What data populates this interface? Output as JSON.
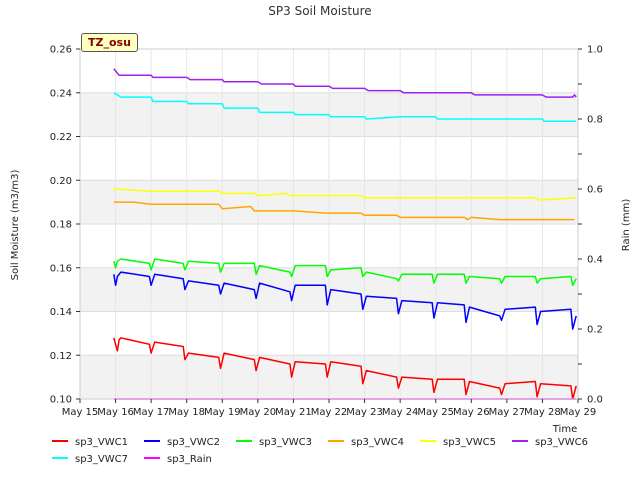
{
  "chart_data": {
    "type": "line",
    "title": "SP3 Soil Moisture",
    "xlabel": "Time",
    "ylabel": "Soil Moisture (m3/m3)",
    "y2label": "Rain (mm)",
    "site_label": "TZ_osu",
    "ylim": [
      0.1,
      0.26
    ],
    "y2lim": [
      0.0,
      1.0
    ],
    "yticks": [
      "0.10",
      "0.12",
      "0.14",
      "0.16",
      "0.18",
      "0.20",
      "0.22",
      "0.24",
      "0.26"
    ],
    "y2ticks": [
      "0.0",
      "0.2",
      "0.4",
      "0.6",
      "0.8",
      "1.0"
    ],
    "xlim": [
      15,
      29
    ],
    "xticks": [
      {
        "value": 15,
        "label": "May 15"
      },
      {
        "value": 16,
        "label": "May 16"
      },
      {
        "value": 17,
        "label": "May 17"
      },
      {
        "value": 18,
        "label": "May 18"
      },
      {
        "value": 19,
        "label": "May 19"
      },
      {
        "value": 20,
        "label": "May 20"
      },
      {
        "value": 21,
        "label": "May 21"
      },
      {
        "value": 22,
        "label": "May 22"
      },
      {
        "value": 23,
        "label": "May 23"
      },
      {
        "value": 24,
        "label": "May 24"
      },
      {
        "value": 25,
        "label": "May 25"
      },
      {
        "value": 26,
        "label": "May 26"
      },
      {
        "value": 27,
        "label": "May 27"
      },
      {
        "value": 28,
        "label": "May 28"
      },
      {
        "value": 29,
        "label": "May 29"
      }
    ],
    "series": [
      {
        "name": "sp3_VWC1",
        "color": "#ff0000",
        "axis": "left",
        "x": [
          15.95,
          16.05,
          16.1,
          16.15,
          16.95,
          17.0,
          17.1,
          17.9,
          17.95,
          18.05,
          18.9,
          18.95,
          19.05,
          19.9,
          19.95,
          20.05,
          20.9,
          20.95,
          21.05,
          21.9,
          21.95,
          22.05,
          22.9,
          22.95,
          23.05,
          23.9,
          23.95,
          24.05,
          24.9,
          24.95,
          25.05,
          25.8,
          25.85,
          25.95,
          26.8,
          26.85,
          26.95,
          27.8,
          27.85,
          27.95,
          28.8,
          28.85,
          28.95
        ],
        "y": [
          0.128,
          0.122,
          0.127,
          0.128,
          0.125,
          0.121,
          0.126,
          0.124,
          0.118,
          0.121,
          0.119,
          0.114,
          0.121,
          0.118,
          0.113,
          0.119,
          0.116,
          0.11,
          0.117,
          0.116,
          0.11,
          0.117,
          0.115,
          0.107,
          0.113,
          0.11,
          0.105,
          0.11,
          0.109,
          0.103,
          0.109,
          0.109,
          0.102,
          0.108,
          0.105,
          0.102,
          0.107,
          0.108,
          0.101,
          0.107,
          0.106,
          0.1,
          0.106
        ]
      },
      {
        "name": "sp3_VWC2",
        "color": "#0000ff",
        "axis": "left",
        "x": [
          15.95,
          16.0,
          16.05,
          16.15,
          16.95,
          17.0,
          17.1,
          17.9,
          17.95,
          18.05,
          18.9,
          18.95,
          19.05,
          19.9,
          19.95,
          20.05,
          20.9,
          20.95,
          21.05,
          21.9,
          21.95,
          22.05,
          22.9,
          22.95,
          23.05,
          23.9,
          23.95,
          24.05,
          24.9,
          24.95,
          25.05,
          25.8,
          25.85,
          25.95,
          26.8,
          26.85,
          26.95,
          27.8,
          27.85,
          27.95,
          28.8,
          28.85,
          28.95
        ],
        "y": [
          0.157,
          0.152,
          0.156,
          0.158,
          0.156,
          0.152,
          0.157,
          0.155,
          0.15,
          0.154,
          0.152,
          0.148,
          0.153,
          0.15,
          0.146,
          0.153,
          0.149,
          0.145,
          0.152,
          0.152,
          0.143,
          0.15,
          0.148,
          0.141,
          0.147,
          0.146,
          0.139,
          0.145,
          0.144,
          0.137,
          0.144,
          0.143,
          0.135,
          0.142,
          0.138,
          0.136,
          0.141,
          0.142,
          0.134,
          0.14,
          0.141,
          0.132,
          0.138
        ]
      },
      {
        "name": "sp3_VWC3",
        "color": "#00ff00",
        "axis": "left",
        "x": [
          15.95,
          16.0,
          16.05,
          16.15,
          16.95,
          17.0,
          17.1,
          17.9,
          17.95,
          18.05,
          18.9,
          18.95,
          19.05,
          19.9,
          19.95,
          20.05,
          20.9,
          20.95,
          21.05,
          21.9,
          21.95,
          22.05,
          22.9,
          22.95,
          23.05,
          23.9,
          23.95,
          24.05,
          24.9,
          24.95,
          25.05,
          25.8,
          25.85,
          25.95,
          26.8,
          26.85,
          26.95,
          27.8,
          27.85,
          27.95,
          28.8,
          28.85,
          28.95
        ],
        "y": [
          0.163,
          0.16,
          0.163,
          0.164,
          0.162,
          0.159,
          0.164,
          0.162,
          0.159,
          0.163,
          0.162,
          0.158,
          0.162,
          0.162,
          0.157,
          0.161,
          0.158,
          0.156,
          0.161,
          0.161,
          0.156,
          0.159,
          0.16,
          0.156,
          0.158,
          0.155,
          0.154,
          0.157,
          0.157,
          0.153,
          0.157,
          0.157,
          0.153,
          0.156,
          0.155,
          0.153,
          0.156,
          0.156,
          0.153,
          0.155,
          0.156,
          0.152,
          0.155
        ]
      },
      {
        "name": "sp3_VWC4",
        "color": "#ffa500",
        "axis": "left",
        "x": [
          15.95,
          16.5,
          17.0,
          18.0,
          18.9,
          19.0,
          19.8,
          19.9,
          20.0,
          21.0,
          21.9,
          22.0,
          22.9,
          23.0,
          23.9,
          24.0,
          24.9,
          25.0,
          25.8,
          25.9,
          26.0,
          26.8,
          27.0,
          27.8,
          28.0,
          28.9
        ],
        "y": [
          0.19,
          0.19,
          0.189,
          0.189,
          0.189,
          0.187,
          0.188,
          0.186,
          0.186,
          0.186,
          0.185,
          0.185,
          0.185,
          0.184,
          0.184,
          0.183,
          0.183,
          0.183,
          0.183,
          0.182,
          0.183,
          0.182,
          0.182,
          0.182,
          0.182,
          0.182
        ]
      },
      {
        "name": "sp3_VWC5",
        "color": "#ffff00",
        "axis": "left",
        "x": [
          15.95,
          16.0,
          17.0,
          18.0,
          18.9,
          19.0,
          19.9,
          20.0,
          20.8,
          20.9,
          21.0,
          22.0,
          22.9,
          23.0,
          24.0,
          25.0,
          26.0,
          27.0,
          27.8,
          27.9,
          28.0,
          28.95
        ],
        "y": [
          0.195,
          0.196,
          0.195,
          0.195,
          0.195,
          0.194,
          0.194,
          0.193,
          0.194,
          0.193,
          0.193,
          0.193,
          0.193,
          0.192,
          0.192,
          0.192,
          0.192,
          0.192,
          0.192,
          0.191,
          0.191,
          0.192
        ]
      },
      {
        "name": "sp3_VWC6",
        "color": "#a020f0",
        "axis": "left",
        "x": [
          15.95,
          16.05,
          16.1,
          17.0,
          17.05,
          18.0,
          18.1,
          19.0,
          19.05,
          20.0,
          20.1,
          21.0,
          21.05,
          22.0,
          22.1,
          23.0,
          23.1,
          24.0,
          24.1,
          25.0,
          25.1,
          26.0,
          26.1,
          27.0,
          27.1,
          28.0,
          28.1,
          28.85,
          28.9,
          28.95
        ],
        "y": [
          0.251,
          0.249,
          0.248,
          0.248,
          0.247,
          0.247,
          0.246,
          0.246,
          0.245,
          0.245,
          0.244,
          0.244,
          0.243,
          0.243,
          0.242,
          0.242,
          0.241,
          0.241,
          0.24,
          0.24,
          0.24,
          0.24,
          0.239,
          0.239,
          0.239,
          0.239,
          0.238,
          0.238,
          0.239,
          0.238
        ]
      },
      {
        "name": "sp3_VWC7",
        "color": "#00ffff",
        "axis": "left",
        "x": [
          15.95,
          16.05,
          16.15,
          17.0,
          17.05,
          18.0,
          18.05,
          19.0,
          19.05,
          20.0,
          20.05,
          21.0,
          21.05,
          22.0,
          22.05,
          23.0,
          23.05,
          24.0,
          24.1,
          25.0,
          25.05,
          26.0,
          26.05,
          27.0,
          27.05,
          28.0,
          28.05,
          28.95
        ],
        "y": [
          0.24,
          0.239,
          0.238,
          0.238,
          0.236,
          0.236,
          0.235,
          0.235,
          0.233,
          0.233,
          0.231,
          0.231,
          0.23,
          0.23,
          0.229,
          0.229,
          0.228,
          0.229,
          0.229,
          0.229,
          0.228,
          0.228,
          0.228,
          0.228,
          0.228,
          0.228,
          0.227,
          0.227
        ]
      },
      {
        "name": "sp3_Rain",
        "color": "#ff00ff",
        "axis": "right",
        "x": [
          15.95,
          28.95
        ],
        "y": [
          0.0,
          0.0
        ]
      }
    ]
  }
}
